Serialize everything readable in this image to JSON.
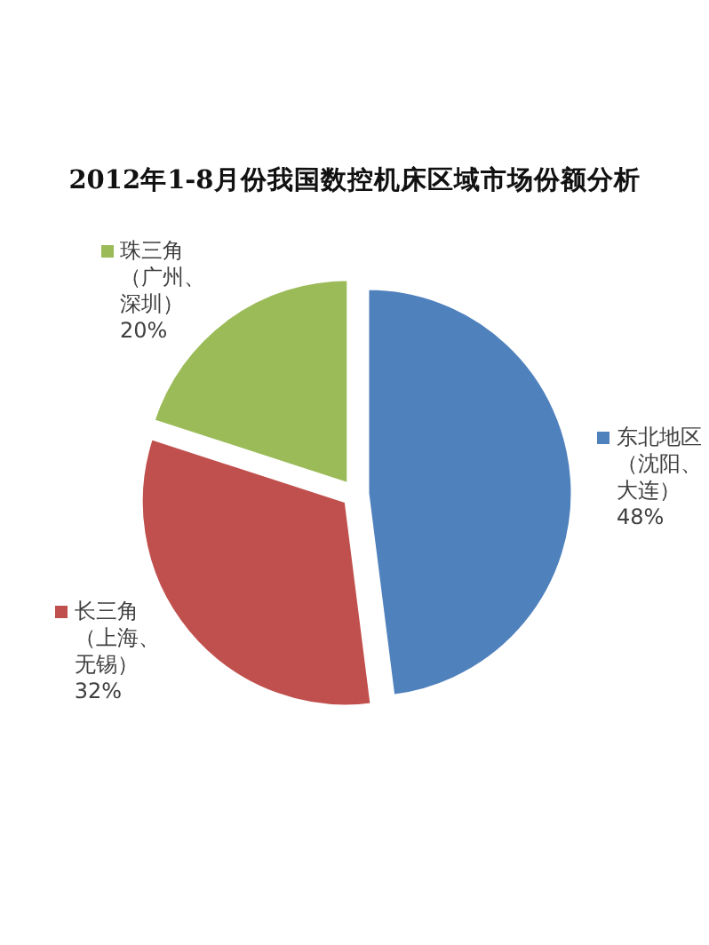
{
  "chart_data": {
    "type": "pie",
    "title": "2012年1-8月份我国数控机床区域市场份额分析",
    "categories": [
      "东北地区（沈阳、大连）",
      "长三角（上海、无锡）",
      "珠三角（广州、深圳）"
    ],
    "values": [
      48,
      32,
      20
    ],
    "colors": [
      "#4f81bd",
      "#c0504d",
      "#9bbb59"
    ],
    "value_labels": [
      "48%",
      "32%",
      "20%"
    ],
    "legend": "right"
  }
}
